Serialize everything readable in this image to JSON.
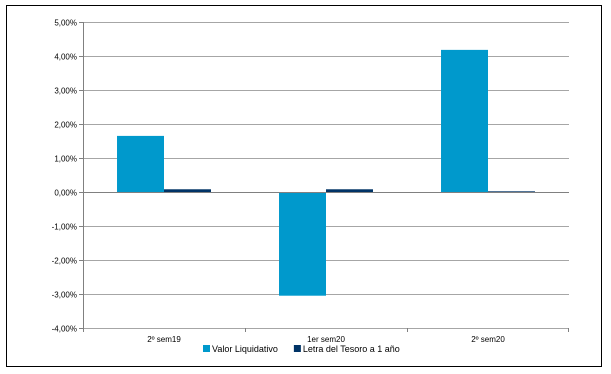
{
  "chart_data": {
    "type": "bar",
    "categories": [
      "2º sem19",
      "1er sem20",
      "2º sem20"
    ],
    "series": [
      {
        "name": "Valor Liquidativo",
        "values": [
          1.65,
          -3.05,
          4.18
        ],
        "color": "#0099CC"
      },
      {
        "name": "Letra del Tesoro a 1 año",
        "values": [
          0.08,
          0.08,
          0.02
        ],
        "color": "#003366"
      }
    ],
    "ylim": [
      -4,
      5
    ],
    "yticks": [
      5,
      4,
      3,
      2,
      1,
      0,
      -1,
      -2,
      -3,
      -4
    ],
    "ytick_labels": [
      "5,00%",
      "4,00%",
      "3,00%",
      "2,00%",
      "1,00%",
      "0,00%",
      "-1,00%",
      "-2,00%",
      "-3,00%",
      "-4,00%"
    ],
    "grid": true,
    "legend_position": "bottom",
    "title": "",
    "xlabel": "",
    "ylabel": ""
  }
}
